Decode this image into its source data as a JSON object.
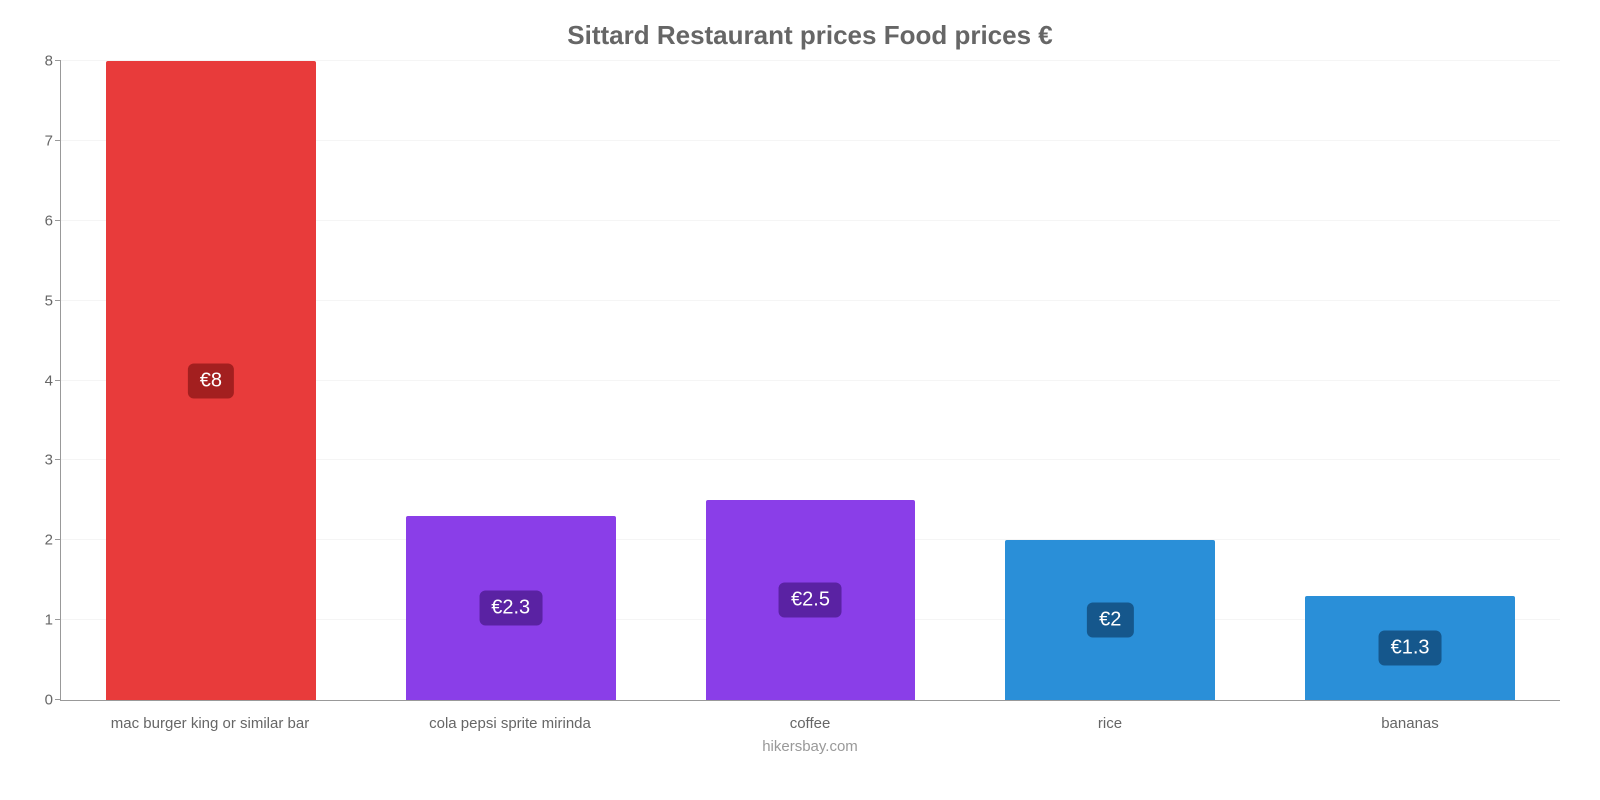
{
  "chart": {
    "type": "bar",
    "title": "Sittard Restaurant prices Food prices €",
    "title_fontsize": 26,
    "title_color": "#666666",
    "attribution": "hikersbay.com",
    "background_color": "#ffffff",
    "grid_color": "#f5f5f5",
    "axis_color": "#999999",
    "ylim": [
      0,
      8
    ],
    "ytick_step": 1,
    "yticks": [
      0,
      1,
      2,
      3,
      4,
      5,
      6,
      7,
      8
    ],
    "label_fontsize": 15,
    "value_label_fontsize": 20,
    "bar_width": 0.7,
    "categories": [
      "mac burger king or similar bar",
      "cola pepsi sprite mirinda",
      "coffee",
      "rice",
      "bananas"
    ],
    "values": [
      8,
      2.3,
      2.5,
      2,
      1.3
    ],
    "value_labels": [
      "€8",
      "€2.3",
      "€2.5",
      "€2",
      "€1.3"
    ],
    "bar_colors": [
      "#e83b3b",
      "#8a3ee8",
      "#8a3ee8",
      "#2a8fd8",
      "#2a8fd8"
    ],
    "value_label_bg_colors": [
      "#a31f1f",
      "#5a22a3",
      "#5a22a3",
      "#15578c",
      "#15578c"
    ],
    "value_label_text_color": "#ffffff"
  }
}
